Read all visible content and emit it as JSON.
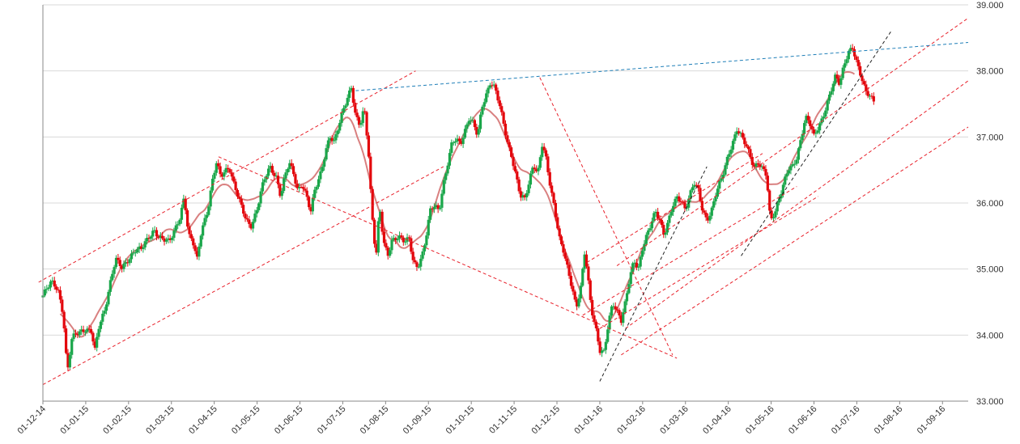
{
  "chart_data": {
    "type": "candlestick",
    "title": "",
    "xlabel": "",
    "ylabel": "",
    "ylim": [
      33.0,
      39.0
    ],
    "y_ticks": [
      "33.000",
      "34.000",
      "35.000",
      "36.000",
      "37.000",
      "38.000",
      "39.000"
    ],
    "x_ticks": [
      "01-12-14",
      "01-01-15",
      "01-02-15",
      "01-03-15",
      "01-04-15",
      "01-05-15",
      "01-06-15",
      "01-07-15",
      "01-08-15",
      "01-09-15",
      "01-10-15",
      "01-11-15",
      "01-12-15",
      "01-01-16",
      "01-02-16",
      "01-03-16",
      "01-04-16",
      "01-05-16",
      "01-06-16",
      "01-07-16",
      "01-08-16",
      "01-09-16"
    ],
    "x_range_months": [
      0,
      21.6
    ],
    "grid": true,
    "colors": {
      "up": "#1aa64a",
      "down": "#e3060c",
      "moving_average": "#d98080",
      "trend": "#e8202a",
      "resistance": "#1f7fb8",
      "support_alt": "#222222",
      "grid": "#d9d9d9"
    },
    "price_path": [
      [
        0.0,
        34.6
      ],
      [
        0.2,
        34.8
      ],
      [
        0.35,
        34.7
      ],
      [
        0.45,
        34.4
      ],
      [
        0.5,
        34.1
      ],
      [
        0.55,
        33.6
      ],
      [
        0.6,
        33.45
      ],
      [
        0.65,
        33.9
      ],
      [
        0.75,
        34.0
      ],
      [
        0.85,
        34.05
      ],
      [
        1.0,
        34.1
      ],
      [
        1.15,
        34.05
      ],
      [
        1.2,
        33.7
      ],
      [
        1.3,
        34.1
      ],
      [
        1.45,
        34.4
      ],
      [
        1.6,
        34.9
      ],
      [
        1.7,
        35.15
      ],
      [
        1.85,
        35.0
      ],
      [
        2.0,
        35.15
      ],
      [
        2.15,
        35.3
      ],
      [
        2.3,
        35.3
      ],
      [
        2.45,
        35.45
      ],
      [
        2.6,
        35.6
      ],
      [
        2.7,
        35.5
      ],
      [
        2.8,
        35.45
      ],
      [
        2.95,
        35.4
      ],
      [
        3.05,
        35.55
      ],
      [
        3.2,
        35.8
      ],
      [
        3.3,
        36.1
      ],
      [
        3.4,
        35.5
      ],
      [
        3.5,
        35.4
      ],
      [
        3.6,
        35.15
      ],
      [
        3.7,
        35.6
      ],
      [
        3.85,
        35.9
      ],
      [
        3.95,
        36.3
      ],
      [
        4.05,
        36.6
      ],
      [
        4.15,
        36.4
      ],
      [
        4.25,
        36.5
      ],
      [
        4.35,
        36.55
      ],
      [
        4.45,
        36.3
      ],
      [
        4.55,
        36.1
      ],
      [
        4.65,
        35.9
      ],
      [
        4.75,
        35.75
      ],
      [
        4.85,
        35.65
      ],
      [
        5.0,
        35.9
      ],
      [
        5.1,
        36.2
      ],
      [
        5.2,
        36.4
      ],
      [
        5.3,
        36.55
      ],
      [
        5.45,
        36.4
      ],
      [
        5.55,
        36.1
      ],
      [
        5.65,
        36.4
      ],
      [
        5.75,
        36.6
      ],
      [
        5.85,
        36.45
      ],
      [
        5.95,
        36.2
      ],
      [
        6.05,
        36.3
      ],
      [
        6.15,
        36.1
      ],
      [
        6.25,
        35.85
      ],
      [
        6.35,
        36.2
      ],
      [
        6.5,
        36.5
      ],
      [
        6.6,
        36.8
      ],
      [
        6.7,
        37.0
      ],
      [
        6.8,
        36.9
      ],
      [
        6.9,
        37.15
      ],
      [
        7.0,
        37.4
      ],
      [
        7.1,
        37.6
      ],
      [
        7.2,
        37.75
      ],
      [
        7.3,
        37.3
      ],
      [
        7.4,
        37.15
      ],
      [
        7.5,
        37.45
      ],
      [
        7.6,
        36.8
      ],
      [
        7.65,
        36.2
      ],
      [
        7.72,
        35.5
      ],
      [
        7.8,
        35.2
      ],
      [
        7.85,
        36.0
      ],
      [
        7.95,
        35.4
      ],
      [
        8.05,
        35.2
      ],
      [
        8.15,
        35.45
      ],
      [
        8.3,
        35.5
      ],
      [
        8.45,
        35.4
      ],
      [
        8.55,
        35.45
      ],
      [
        8.65,
        35.1
      ],
      [
        8.75,
        35.05
      ],
      [
        8.85,
        35.2
      ],
      [
        8.95,
        35.5
      ],
      [
        9.05,
        35.9
      ],
      [
        9.15,
        35.95
      ],
      [
        9.25,
        35.9
      ],
      [
        9.35,
        36.3
      ],
      [
        9.45,
        36.6
      ],
      [
        9.55,
        36.9
      ],
      [
        9.65,
        36.95
      ],
      [
        9.75,
        36.9
      ],
      [
        9.85,
        37.1
      ],
      [
        9.95,
        37.3
      ],
      [
        10.05,
        37.2
      ],
      [
        10.15,
        37.0
      ],
      [
        10.25,
        37.45
      ],
      [
        10.35,
        37.65
      ],
      [
        10.45,
        37.85
      ],
      [
        10.55,
        37.75
      ],
      [
        10.65,
        37.5
      ],
      [
        10.75,
        37.2
      ],
      [
        10.85,
        36.9
      ],
      [
        10.95,
        36.7
      ],
      [
        11.05,
        36.4
      ],
      [
        11.15,
        36.1
      ],
      [
        11.25,
        36.05
      ],
      [
        11.35,
        36.3
      ],
      [
        11.45,
        36.6
      ],
      [
        11.55,
        36.45
      ],
      [
        11.65,
        36.9
      ],
      [
        11.75,
        36.65
      ],
      [
        11.85,
        36.2
      ],
      [
        11.95,
        35.9
      ],
      [
        12.05,
        35.5
      ],
      [
        12.15,
        35.3
      ],
      [
        12.25,
        35.0
      ],
      [
        12.35,
        34.7
      ],
      [
        12.45,
        34.4
      ],
      [
        12.55,
        34.7
      ],
      [
        12.65,
        35.3
      ],
      [
        12.72,
        34.9
      ],
      [
        12.8,
        34.4
      ],
      [
        12.9,
        34.1
      ],
      [
        13.0,
        33.75
      ],
      [
        13.1,
        33.75
      ],
      [
        13.2,
        34.2
      ],
      [
        13.3,
        34.5
      ],
      [
        13.4,
        34.35
      ],
      [
        13.5,
        34.2
      ],
      [
        13.6,
        34.5
      ],
      [
        13.7,
        34.9
      ],
      [
        13.8,
        35.15
      ],
      [
        13.9,
        35.0
      ],
      [
        14.0,
        35.3
      ],
      [
        14.1,
        35.5
      ],
      [
        14.2,
        35.7
      ],
      [
        14.3,
        35.9
      ],
      [
        14.4,
        35.75
      ],
      [
        14.5,
        35.5
      ],
      [
        14.6,
        35.7
      ],
      [
        14.7,
        35.95
      ],
      [
        14.8,
        36.1
      ],
      [
        14.9,
        36.05
      ],
      [
        15.0,
        35.9
      ],
      [
        15.1,
        36.1
      ],
      [
        15.2,
        36.3
      ],
      [
        15.3,
        36.2
      ],
      [
        15.4,
        35.9
      ],
      [
        15.5,
        35.75
      ],
      [
        15.6,
        35.85
      ],
      [
        15.7,
        36.1
      ],
      [
        15.8,
        36.3
      ],
      [
        15.9,
        36.5
      ],
      [
        16.0,
        36.75
      ],
      [
        16.1,
        36.9
      ],
      [
        16.2,
        37.1
      ],
      [
        16.3,
        37.0
      ],
      [
        16.4,
        36.9
      ],
      [
        16.5,
        36.75
      ],
      [
        16.6,
        36.55
      ],
      [
        16.7,
        36.6
      ],
      [
        16.8,
        36.5
      ],
      [
        16.9,
        36.4
      ],
      [
        16.95,
        35.9
      ],
      [
        17.0,
        35.75
      ],
      [
        17.1,
        35.9
      ],
      [
        17.2,
        36.1
      ],
      [
        17.3,
        36.3
      ],
      [
        17.4,
        36.5
      ],
      [
        17.5,
        36.55
      ],
      [
        17.6,
        36.7
      ],
      [
        17.7,
        37.0
      ],
      [
        17.8,
        37.3
      ],
      [
        17.9,
        37.2
      ],
      [
        18.0,
        37.0
      ],
      [
        18.1,
        37.15
      ],
      [
        18.2,
        37.3
      ],
      [
        18.3,
        37.5
      ],
      [
        18.4,
        37.7
      ],
      [
        18.5,
        37.9
      ],
      [
        18.6,
        37.8
      ],
      [
        18.7,
        38.1
      ],
      [
        18.8,
        38.3
      ],
      [
        18.9,
        38.35
      ],
      [
        19.0,
        38.1
      ],
      [
        19.1,
        37.9
      ],
      [
        19.2,
        37.7
      ],
      [
        19.3,
        37.65
      ],
      [
        19.4,
        37.55
      ]
    ],
    "trend_lines": [
      {
        "style": "channel",
        "from": [
          -0.1,
          34.8
        ],
        "to": [
          8.7,
          38.0
        ]
      },
      {
        "style": "channel",
        "from": [
          0.0,
          33.25
        ],
        "to": [
          9.35,
          36.55
        ]
      },
      {
        "style": "channel",
        "from": [
          4.1,
          36.7
        ],
        "to": [
          14.8,
          33.65
        ]
      },
      {
        "style": "channel",
        "from": [
          12.7,
          35.1
        ],
        "to": [
          16.8,
          36.75
        ]
      },
      {
        "style": "channel",
        "from": [
          12.6,
          34.3
        ],
        "to": [
          17.6,
          36.25
        ]
      },
      {
        "style": "channel",
        "from": [
          13.0,
          34.1
        ],
        "to": [
          18.1,
          36.1
        ]
      },
      {
        "style": "channel",
        "from": [
          13.5,
          33.7
        ],
        "to": [
          21.6,
          37.15
        ]
      },
      {
        "style": "channel",
        "from": [
          13.4,
          35.05
        ],
        "to": [
          21.6,
          38.8
        ]
      },
      {
        "style": "channel",
        "from": [
          13.6,
          34.1
        ],
        "to": [
          21.6,
          37.85
        ]
      },
      {
        "style": "channel",
        "from": [
          11.6,
          37.9
        ],
        "to": [
          14.7,
          33.7
        ]
      },
      {
        "style": "resistance",
        "from": [
          7.3,
          37.7
        ],
        "to": [
          21.6,
          38.43
        ]
      },
      {
        "style": "support_alt",
        "from": [
          13.0,
          33.3
        ],
        "to": [
          15.5,
          36.55
        ]
      },
      {
        "style": "support_alt",
        "from": [
          16.3,
          35.2
        ],
        "to": [
          19.8,
          38.6
        ]
      }
    ]
  }
}
